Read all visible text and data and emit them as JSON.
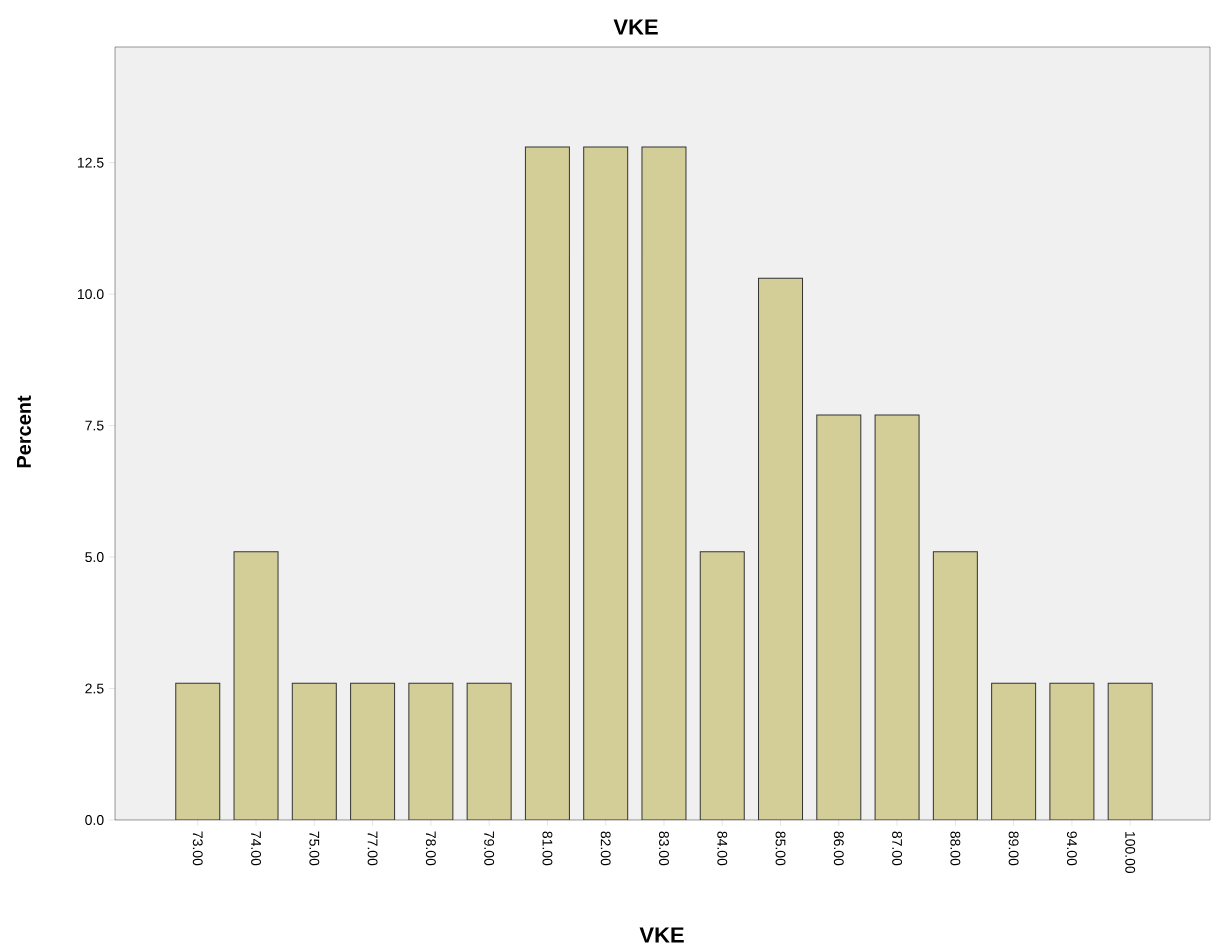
{
  "chart_data": {
    "type": "bar",
    "title": "VKE",
    "xlabel": "VKE",
    "ylabel": "Percent",
    "categories": [
      "73.00",
      "74.00",
      "75.00",
      "77.00",
      "78.00",
      "79.00",
      "81.00",
      "82.00",
      "83.00",
      "84.00",
      "85.00",
      "86.00",
      "87.00",
      "88.00",
      "89.00",
      "94.00",
      "100.00"
    ],
    "values": [
      2.6,
      5.1,
      2.6,
      2.6,
      2.6,
      2.6,
      12.8,
      12.8,
      12.8,
      5.1,
      10.3,
      7.7,
      7.7,
      5.1,
      2.6,
      2.6,
      2.6
    ],
    "color": "#d3ce97",
    "ylim": [
      0,
      14.7
    ],
    "yticks": [
      {
        "value": 0,
        "label": "0.0"
      },
      {
        "value": 2.5,
        "label": "2.5"
      },
      {
        "value": 5,
        "label": "5.0"
      },
      {
        "value": 7.5,
        "label": "7.5"
      },
      {
        "value": 10,
        "label": "10.0"
      },
      {
        "value": 12.5,
        "label": "12.5"
      }
    ]
  }
}
